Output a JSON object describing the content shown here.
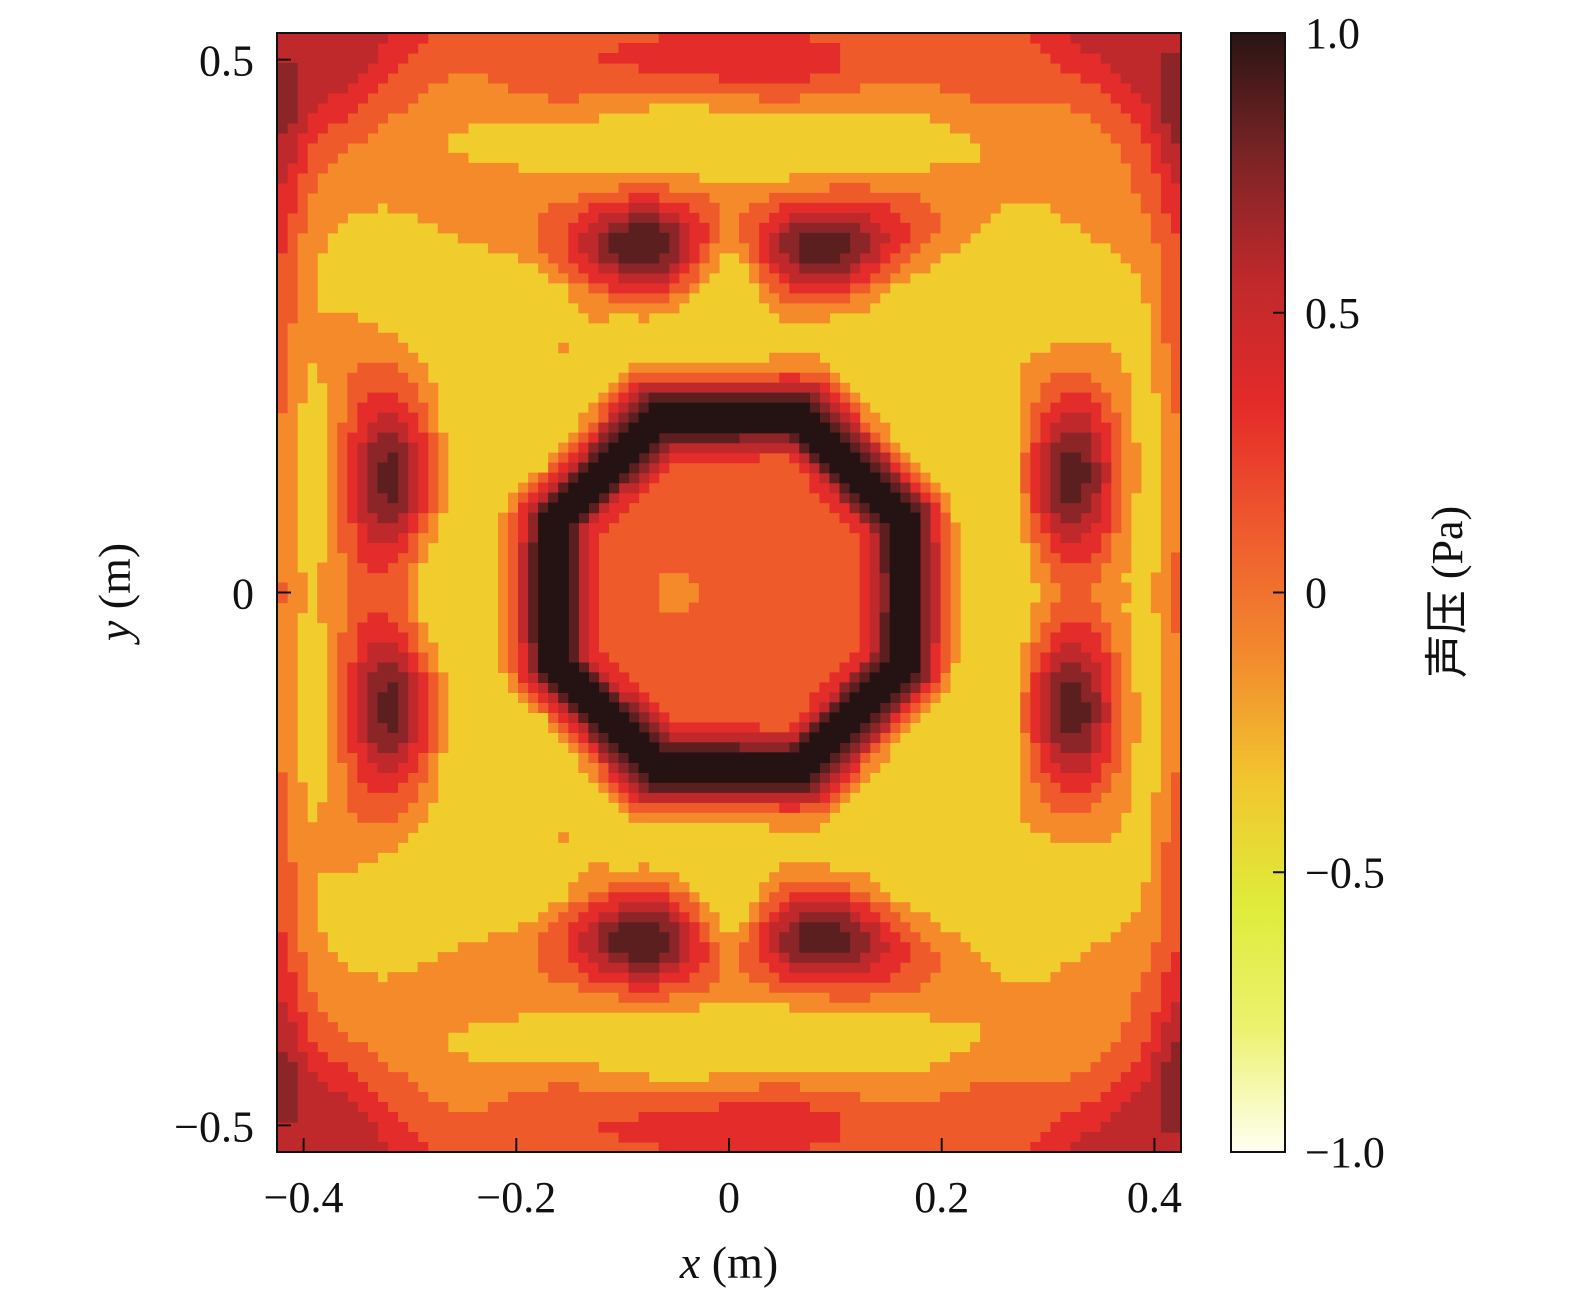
{
  "chart_data": {
    "type": "heatmap",
    "subtype": "filled-contour",
    "title": "",
    "xlabel": "x (m)",
    "ylabel": "y (m)",
    "xlabel_var": "x",
    "xlabel_unit": " (m)",
    "ylabel_var": "y",
    "ylabel_unit": " (m)",
    "xlim": [
      -0.425,
      0.425
    ],
    "ylim": [
      -0.525,
      0.525
    ],
    "xticks": [
      -0.4,
      -0.2,
      0,
      0.2,
      0.4
    ],
    "xtick_labels": [
      "−0.4",
      "−0.2",
      "0",
      "0.2",
      "0.4"
    ],
    "yticks": [
      -0.5,
      0,
      0.5
    ],
    "ytick_labels": [
      "−0.5",
      "0",
      "0.5"
    ],
    "grid": false,
    "colorbar": {
      "label": "声压 (Pa)",
      "range": [
        -1.0,
        1.0
      ],
      "ticks": [
        1.0,
        0.5,
        0,
        -0.5,
        -1.0
      ],
      "tick_labels": [
        "1.0",
        "0.5",
        "0",
        "−0.5",
        "−1.0"
      ],
      "colormap": "hot-reversed",
      "colors": [
        "#fffff2",
        "#ecf26e",
        "#dfeb3a",
        "#f2c52f",
        "#f28a2e",
        "#ef5a2e",
        "#e42b29",
        "#c0292c",
        "#7c2426",
        "#2a1414"
      ]
    },
    "levels": [
      -0.3,
      -0.1,
      0.1,
      0.3,
      0.5,
      0.7,
      0.9
    ],
    "level_colors": {
      "base": "#f0cc2c",
      "-0.3": "#f58a2a",
      "-0.1": "#ee5a2a",
      "0.1": "#e42d2a",
      "0.3": "#bf292c",
      "0.5": "#8b2527",
      "0.7": "#5c1f1f",
      "0.9": "#251213"
    },
    "field_description": "Symmetric acoustic pressure pattern: octagonal high-pressure ring around the origin, eight outer lobes, diagonal streaks near the corners"
  }
}
